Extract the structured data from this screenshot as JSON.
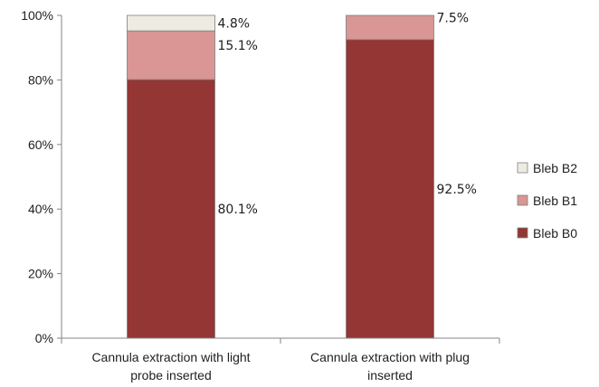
{
  "chart_data": {
    "type": "bar",
    "stacked": true,
    "categories": [
      [
        "Cannula extraction with light",
        "probe inserted"
      ],
      [
        "Cannula extraction with plug",
        "inserted"
      ]
    ],
    "series": [
      {
        "name": "Bleb B0",
        "values": [
          80.1,
          92.5
        ],
        "labels": [
          "80.1%",
          "92.5%"
        ],
        "color": "#943634"
      },
      {
        "name": "Bleb B1",
        "values": [
          15.1,
          7.5
        ],
        "labels": [
          "15.1%",
          "7.5%"
        ],
        "color": "#d99694"
      },
      {
        "name": "Bleb B2",
        "values": [
          4.8,
          0
        ],
        "labels": [
          "4.8%",
          ""
        ],
        "color": "#eeece1"
      }
    ],
    "legend_order": [
      "Bleb B2",
      "Bleb B1",
      "Bleb B0"
    ],
    "y_ticks": [
      "0%",
      "20%",
      "40%",
      "60%",
      "80%",
      "100%"
    ],
    "y_tick_values": [
      0,
      20,
      40,
      60,
      80,
      100
    ],
    "ylim": [
      0,
      100
    ],
    "grid": false,
    "legend_position": "right",
    "title": "",
    "xlabel": "",
    "ylabel": ""
  }
}
